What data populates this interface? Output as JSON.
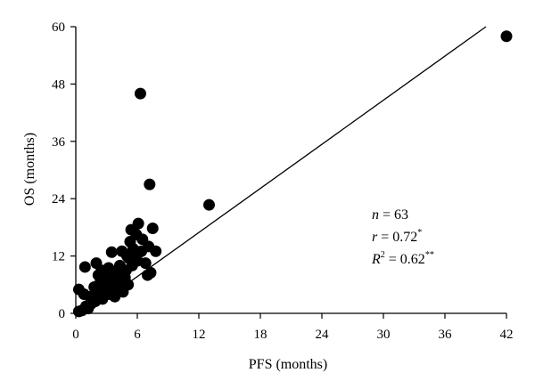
{
  "chart_data": {
    "type": "scatter",
    "title": "",
    "xlabel": "PFS (months)",
    "ylabel": "OS (months)",
    "xlim": [
      0,
      42
    ],
    "ylim": [
      0,
      60
    ],
    "xticks": [
      0,
      6,
      12,
      18,
      24,
      30,
      36,
      42
    ],
    "yticks": [
      0,
      12,
      24,
      36,
      48,
      60
    ],
    "tick_labels_x": [
      "0",
      "6",
      "12",
      "18",
      "24",
      "30",
      "36",
      "42"
    ],
    "tick_labels_y": [
      "0",
      "12",
      "24",
      "36",
      "48",
      "60"
    ],
    "grid": false,
    "point_color": "#000000",
    "points": [
      {
        "x": 0.3,
        "y": 0.4
      },
      {
        "x": 0.6,
        "y": 0.6
      },
      {
        "x": 0.3,
        "y": 5.0
      },
      {
        "x": 0.8,
        "y": 4.0
      },
      {
        "x": 0.9,
        "y": 9.7
      },
      {
        "x": 1.2,
        "y": 1.0
      },
      {
        "x": 1.5,
        "y": 2.0
      },
      {
        "x": 1.6,
        "y": 3.0
      },
      {
        "x": 1.8,
        "y": 5.5
      },
      {
        "x": 1.9,
        "y": 2.5
      },
      {
        "x": 2.0,
        "y": 10.5
      },
      {
        "x": 2.2,
        "y": 8.0
      },
      {
        "x": 2.3,
        "y": 4.5
      },
      {
        "x": 2.5,
        "y": 9.0
      },
      {
        "x": 2.6,
        "y": 3.0
      },
      {
        "x": 2.8,
        "y": 6.0
      },
      {
        "x": 2.9,
        "y": 7.5
      },
      {
        "x": 3.0,
        "y": 5.0
      },
      {
        "x": 3.2,
        "y": 9.5
      },
      {
        "x": 3.3,
        "y": 4.0
      },
      {
        "x": 3.5,
        "y": 6.5
      },
      {
        "x": 3.5,
        "y": 12.8
      },
      {
        "x": 3.7,
        "y": 7.0
      },
      {
        "x": 3.8,
        "y": 3.5
      },
      {
        "x": 4.0,
        "y": 8.0
      },
      {
        "x": 4.1,
        "y": 5.5
      },
      {
        "x": 4.3,
        "y": 10.0
      },
      {
        "x": 4.4,
        "y": 6.5
      },
      {
        "x": 4.5,
        "y": 13.0
      },
      {
        "x": 4.6,
        "y": 4.5
      },
      {
        "x": 4.8,
        "y": 7.5
      },
      {
        "x": 4.9,
        "y": 9.0
      },
      {
        "x": 5.0,
        "y": 12.0
      },
      {
        "x": 5.1,
        "y": 6.0
      },
      {
        "x": 5.2,
        "y": 11.5
      },
      {
        "x": 5.3,
        "y": 15.0
      },
      {
        "x": 5.4,
        "y": 17.5
      },
      {
        "x": 5.6,
        "y": 13.5
      },
      {
        "x": 5.8,
        "y": 12.5
      },
      {
        "x": 5.9,
        "y": 16.5
      },
      {
        "x": 6.0,
        "y": 11.0
      },
      {
        "x": 6.1,
        "y": 18.8
      },
      {
        "x": 6.2,
        "y": 12.8
      },
      {
        "x": 6.3,
        "y": 46.0
      },
      {
        "x": 6.5,
        "y": 15.5
      },
      {
        "x": 6.8,
        "y": 10.5
      },
      {
        "x": 7.0,
        "y": 8.0
      },
      {
        "x": 7.1,
        "y": 14.0
      },
      {
        "x": 7.2,
        "y": 27.0
      },
      {
        "x": 7.3,
        "y": 8.5
      },
      {
        "x": 7.5,
        "y": 17.8
      },
      {
        "x": 7.8,
        "y": 13.0
      },
      {
        "x": 13.0,
        "y": 22.7
      },
      {
        "x": 42.0,
        "y": 58.0
      },
      {
        "x": 1.0,
        "y": 1.5
      },
      {
        "x": 2.4,
        "y": 6.5
      },
      {
        "x": 3.9,
        "y": 5.0
      },
      {
        "x": 4.2,
        "y": 9.0
      },
      {
        "x": 5.5,
        "y": 10.0
      },
      {
        "x": 6.4,
        "y": 13.0
      },
      {
        "x": 1.4,
        "y": 3.5
      },
      {
        "x": 2.7,
        "y": 4.0
      },
      {
        "x": 3.4,
        "y": 8.0
      }
    ],
    "regression_line": {
      "from": {
        "x": 1.0,
        "y": 0.0
      },
      "to": {
        "x": 40.0,
        "y": 60.0
      }
    },
    "annotations": {
      "n": {
        "symbol": "n",
        "text": " = 63"
      },
      "r": {
        "symbol": "r",
        "text": " = 0.72",
        "sup": "*"
      },
      "r2": {
        "symbol": "R",
        "exp": "2",
        "text": " = 0.62",
        "sup": "**"
      }
    }
  }
}
